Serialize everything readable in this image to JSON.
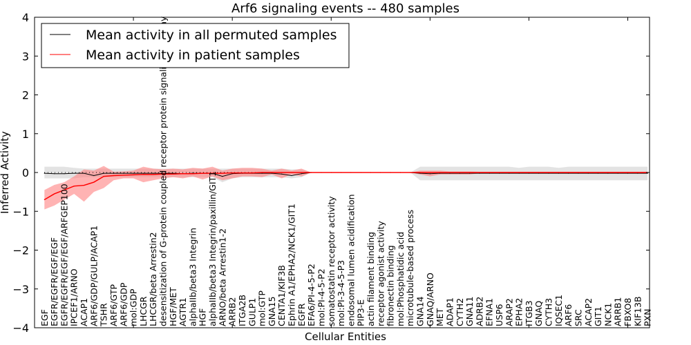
{
  "chart_data": {
    "type": "line",
    "title": "Arf6 signaling events -- 480 samples",
    "xlabel": "Cellular Entities",
    "ylabel": "Inferred Activity",
    "ylim": [
      -4,
      4
    ],
    "xlim": [
      0,
      62.2
    ],
    "yticks": [
      -4,
      -3,
      -2,
      -1,
      0,
      1,
      2,
      3,
      4
    ],
    "ytick_labels": [
      "−4",
      "−3",
      "−2",
      "−1",
      "0",
      "1",
      "2",
      "3",
      "4"
    ],
    "legend": {
      "placement": "top-left",
      "entries": [
        {
          "label": "Mean activity in all permuted samples",
          "color": "#000000"
        },
        {
          "label": "Mean activity in patient samples",
          "color": "#ff0000"
        }
      ]
    },
    "categories": [
      "EGF",
      "EGFR/EGFR/EGF/EGF",
      "EGFR/EGFR/EGF/EGF/ARFGEP100",
      "IPCEF1/ARNO",
      "ACAP1",
      "ARF6/GDP/GULP/ACAP1",
      "TSHR",
      "ARF6/GTP",
      "ARF6/GDP",
      "mol:GDP",
      "LHCGR",
      "LHCGR/beta Arrestin2",
      "desensitization of G-protein coupled receptor protein signaling pathway",
      "HGF/MET",
      "AGTR1",
      "alphaIIb/beta3 Integrin",
      "HGF",
      "alphaIIb/beta3 Integrin/paxillin/GIT1",
      "ARNO/beta Arrestin1-2",
      "ARRB2",
      "ITGA2B",
      "GULP1",
      "mol:GTP",
      "GNA15",
      "CENTA1/KIF3B",
      "Ephrin A1/EPHA2/NCK1/GIT1",
      "EGFR",
      "EFA6/PI-4-5-P2",
      "mol:PI-4-5-P2",
      "somatostatin receptor activity",
      "mol:PI-3-4-5-P3",
      "endosomal lumen acidification",
      "PIP3-E",
      "actin filament binding",
      "receptor agonist activity",
      "fibronectin binding",
      "mol:Phosphatidic acid",
      "microtubule-based process",
      "GNA14",
      "GNAQ/ARNO",
      "MET",
      "ADAP1",
      "CYTH2",
      "GNA11",
      "ADRB2",
      "EFNA1",
      "USP6",
      "ARAP2",
      "EPHA2",
      "ITGB3",
      "GNAQ",
      "CYTH3",
      "IQSEC1",
      "ARF6",
      "SRC",
      "ACAP2",
      "GIT1",
      "NCK1",
      "ARRB1",
      "FBXO8",
      "KIF13B",
      "PXN"
    ],
    "series": [
      {
        "name": "Mean activity in patient samples",
        "color": "#ff0000",
        "band_color": "#ff8080",
        "values": [
          -0.7,
          -0.55,
          -0.45,
          -0.35,
          -0.33,
          -0.25,
          -0.1,
          -0.08,
          -0.07,
          -0.06,
          -0.05,
          -0.05,
          -0.04,
          -0.04,
          -0.03,
          -0.03,
          -0.02,
          -0.02,
          -0.02,
          -0.01,
          -0.01,
          -0.01,
          0,
          0,
          0,
          0,
          0,
          0,
          0,
          0,
          0,
          0,
          0,
          0,
          0,
          0,
          0,
          0,
          0,
          0,
          0,
          0,
          0,
          0,
          0,
          0,
          0,
          0,
          0,
          0,
          0,
          0,
          0,
          0,
          0,
          0,
          0,
          0,
          0,
          0,
          0,
          0
        ],
        "lower": [
          -0.95,
          -0.85,
          -0.7,
          -0.55,
          -0.75,
          -0.5,
          -0.4,
          -0.2,
          -0.15,
          -0.15,
          -0.25,
          -0.2,
          -0.15,
          -0.12,
          -0.15,
          -0.1,
          -0.18,
          -0.1,
          -0.2,
          -0.15,
          -0.1,
          -0.1,
          -0.12,
          -0.05,
          -0.15,
          -0.05,
          -0.1,
          0,
          0,
          0,
          0,
          0,
          0,
          0,
          0,
          0,
          0,
          0,
          -0.05,
          -0.1,
          -0.05,
          -0.05,
          -0.05,
          -0.05,
          -0.02,
          -0.02,
          -0.02,
          -0.02,
          -0.02,
          -0.02,
          -0.02,
          -0.02,
          -0.02,
          -0.02,
          -0.02,
          -0.02,
          -0.02,
          -0.02,
          -0.02,
          -0.02,
          -0.02,
          -0.02
        ],
        "upper": [
          -0.45,
          -0.32,
          -0.25,
          -0.1,
          0.08,
          0.05,
          0.17,
          0.02,
          0.03,
          0.05,
          0.15,
          0.1,
          0.08,
          0.1,
          0.08,
          0.12,
          0.1,
          0.15,
          0.05,
          0.1,
          0.12,
          0.12,
          0.1,
          0.05,
          0.1,
          0.05,
          0.1,
          0,
          0,
          0,
          0,
          0,
          0,
          0,
          0,
          0,
          0,
          0,
          0.05,
          0.05,
          0.05,
          0.03,
          0.03,
          0.03,
          0.02,
          0.02,
          0.02,
          0.02,
          0.02,
          0.02,
          0.02,
          0.02,
          0.02,
          0.02,
          0.02,
          0.02,
          0.02,
          0.02,
          0.02,
          0.02,
          0.02,
          0.02
        ]
      },
      {
        "name": "Mean activity in all permuted samples",
        "color": "#000000",
        "band_color": "#cccccc",
        "values": [
          -0.02,
          -0.03,
          -0.03,
          -0.02,
          -0.02,
          -0.08,
          -0.02,
          -0.02,
          -0.02,
          -0.02,
          -0.02,
          -0.02,
          -0.02,
          -0.02,
          -0.03,
          -0.02,
          -0.02,
          -0.02,
          -0.1,
          -0.03,
          -0.02,
          -0.02,
          -0.02,
          -0.02,
          -0.04,
          -0.08,
          -0.03,
          0,
          0,
          0,
          0,
          0,
          0,
          0,
          0,
          0,
          0,
          0,
          -0.02,
          -0.03,
          -0.02,
          -0.02,
          -0.02,
          -0.02,
          -0.02,
          -0.02,
          -0.02,
          -0.02,
          -0.02,
          -0.02,
          -0.02,
          -0.02,
          -0.02,
          -0.02,
          -0.02,
          -0.02,
          -0.02,
          -0.02,
          -0.02,
          -0.02,
          -0.02,
          -0.02
        ],
        "lower": [
          -0.15,
          -0.15,
          -0.15,
          -0.15,
          -0.12,
          -0.12,
          -0.12,
          -0.12,
          -0.12,
          -0.12,
          -0.12,
          -0.12,
          -0.12,
          -0.12,
          -0.12,
          -0.12,
          -0.12,
          -0.12,
          -0.25,
          -0.15,
          -0.12,
          -0.12,
          -0.12,
          -0.12,
          -0.12,
          -0.15,
          -0.12,
          0,
          0,
          0,
          0,
          0,
          0,
          0,
          0,
          0,
          0,
          0,
          -0.2,
          -0.2,
          -0.2,
          -0.2,
          -0.2,
          -0.2,
          -0.2,
          -0.2,
          -0.2,
          -0.2,
          -0.2,
          -0.2,
          -0.2,
          -0.2,
          -0.2,
          -0.2,
          -0.2,
          -0.2,
          -0.2,
          -0.2,
          -0.2,
          -0.2,
          -0.2,
          -0.2
        ],
        "upper": [
          0.15,
          0.15,
          0.15,
          0.12,
          0.1,
          0.1,
          0.1,
          0.1,
          0.1,
          0.1,
          0.1,
          0.1,
          0.1,
          0.1,
          0.1,
          0.1,
          0.1,
          0.1,
          0.1,
          0.1,
          0.1,
          0.1,
          0.1,
          0.1,
          0.1,
          0.08,
          0.08,
          0,
          0,
          0,
          0,
          0,
          0,
          0,
          0,
          0,
          0,
          0,
          0.15,
          0.15,
          0.15,
          0.15,
          0.15,
          0.15,
          0.15,
          0.15,
          0.15,
          0.15,
          0.12,
          0.15,
          0.15,
          0.15,
          0.12,
          0.15,
          0.15,
          0.15,
          0.15,
          0.15,
          0.15,
          0.15,
          0.15,
          0.15
        ]
      }
    ]
  }
}
